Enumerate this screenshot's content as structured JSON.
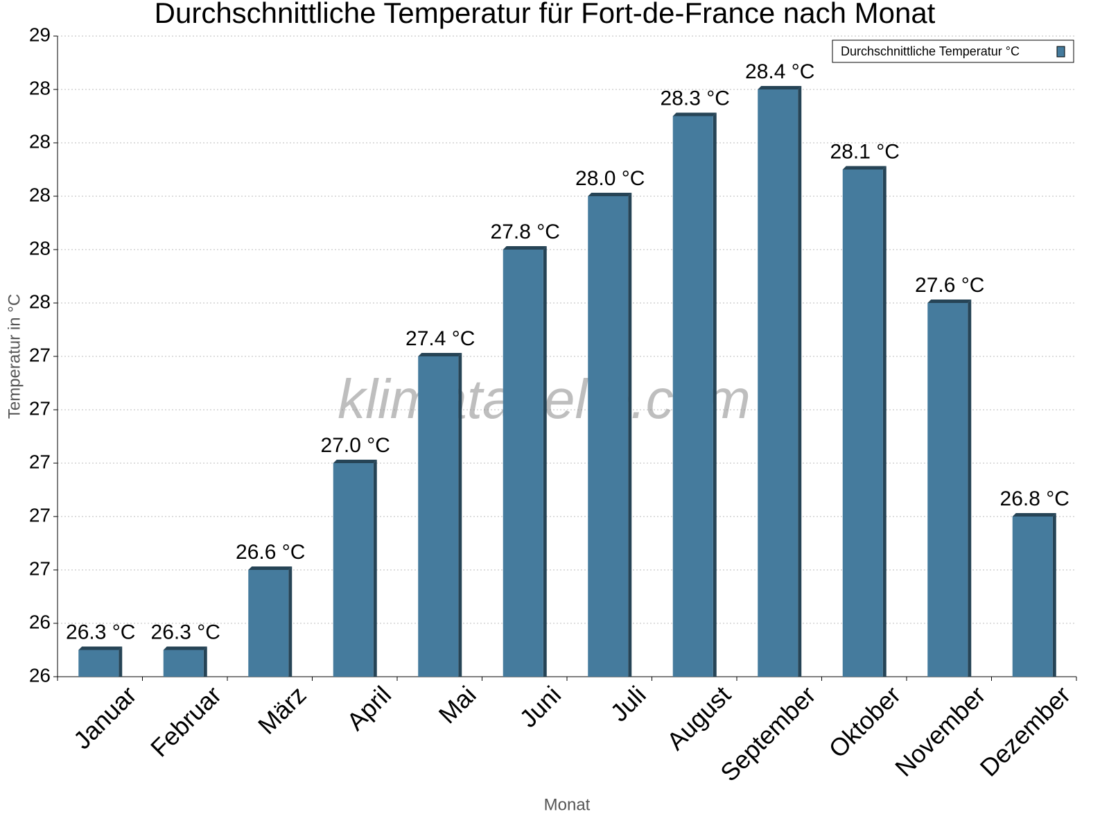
{
  "chart_data": {
    "type": "bar",
    "title": "Durchschnittliche Temperatur für Fort-de-France nach Monat",
    "x_label": "Monat",
    "y_label": "Temperatur in °C",
    "watermark": "klimatabelle.com",
    "categories": [
      "Januar",
      "Februar",
      "März",
      "April",
      "Mai",
      "Juni",
      "Juli",
      "August",
      "September",
      "Oktober",
      "November",
      "Dezember"
    ],
    "series": [
      {
        "name": "Durchschnittliche Temperatur °C",
        "color": "#457b9d",
        "values": [
          26.3,
          26.3,
          26.6,
          27.0,
          27.4,
          27.8,
          28.0,
          28.3,
          28.4,
          28.1,
          27.6,
          26.8
        ],
        "value_labels": [
          "26.3 °C",
          "26.3 °C",
          "26.6 °C",
          "27.0 °C",
          "27.4 °C",
          "27.8 °C",
          "28.0 °C",
          "28.3 °C",
          "28.4 °C",
          "28.1 °C",
          "27.6 °C",
          "26.8 °C"
        ]
      }
    ],
    "ylim": [
      26.2,
      28.6
    ],
    "yticks": [
      {
        "value": 26.2,
        "label": "26"
      },
      {
        "value": 26.4,
        "label": "26"
      },
      {
        "value": 26.6,
        "label": "27"
      },
      {
        "value": 26.8,
        "label": "27"
      },
      {
        "value": 27.0,
        "label": "27"
      },
      {
        "value": 27.2,
        "label": "27"
      },
      {
        "value": 27.4,
        "label": "27"
      },
      {
        "value": 27.6,
        "label": "28"
      },
      {
        "value": 27.8,
        "label": "28"
      },
      {
        "value": 28.0,
        "label": "28"
      },
      {
        "value": 28.2,
        "label": "28"
      },
      {
        "value": 28.4,
        "label": "28"
      },
      {
        "value": 28.6,
        "label": "29"
      }
    ],
    "grid": true,
    "legend": "upper right"
  }
}
